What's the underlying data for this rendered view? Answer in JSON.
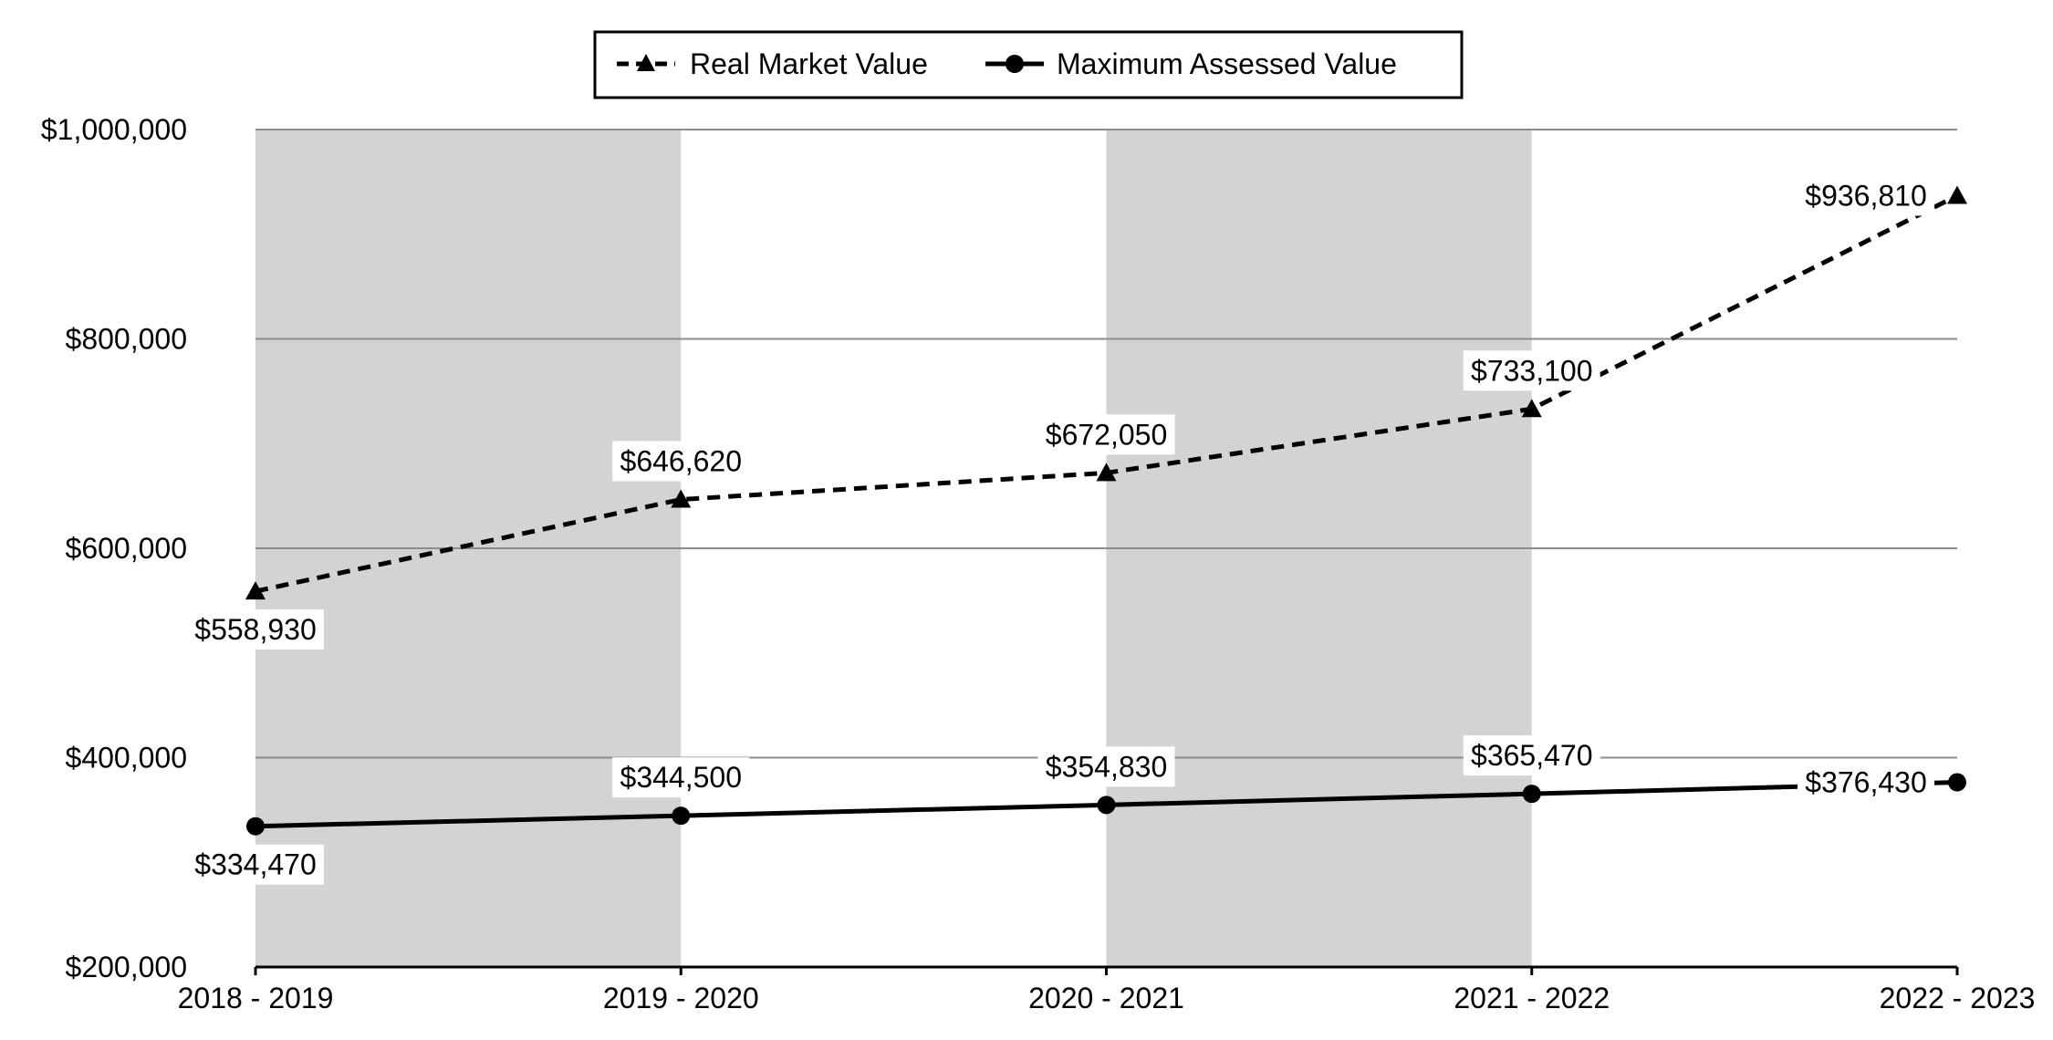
{
  "chart_data": {
    "type": "line",
    "categories": [
      "2018 - 2019",
      "2019 - 2020",
      "2020 - 2021",
      "2021 - 2022",
      "2022 - 2023"
    ],
    "series": [
      {
        "name": "Real Market Value",
        "values": [
          558930,
          646620,
          672050,
          733100,
          936810
        ],
        "data_labels": [
          "$558,930",
          "$646,620",
          "$672,050",
          "$733,100",
          "$936,810"
        ],
        "line_style": "dashed",
        "marker": "triangle",
        "color": "#000000"
      },
      {
        "name": "Maximum Assessed Value",
        "values": [
          334470,
          344500,
          354830,
          365470,
          376430
        ],
        "data_labels": [
          "$334,470",
          "$344,500",
          "$354,830",
          "$365,470",
          "$376,430"
        ],
        "line_style": "solid",
        "marker": "circle",
        "color": "#000000"
      }
    ],
    "ylim": [
      200000,
      1000000
    ],
    "yticks": [
      200000,
      400000,
      600000,
      800000,
      1000000
    ],
    "ytick_labels": [
      "$200,000",
      "$400,000",
      "$600,000",
      "$800,000",
      "$1,000,000"
    ],
    "title": "",
    "xlabel": "",
    "ylabel": "",
    "grid": true,
    "legend_position": "top-center",
    "band_color": "#d3d3d3"
  }
}
